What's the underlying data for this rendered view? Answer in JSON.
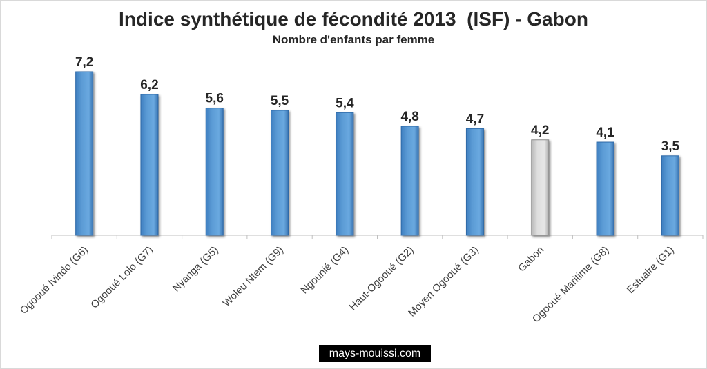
{
  "chart_data": {
    "type": "bar",
    "title": "Indice synthétique de fécondité 2013  (ISF) - Gabon",
    "subtitle": "Nombre d'enfants par femme",
    "categories": [
      "Ogooué Ivindo (G6)",
      "Ogooué Lolo (G7)",
      "Nyanga (G5)",
      "Woleu Ntem (G9)",
      "Ngounié (G4)",
      "Haut-Ogooué (G2)",
      "Moyen Ogooué (G3)",
      "Gabon",
      "Ogooué Maritime (G8)",
      "Estuaire (G1)"
    ],
    "values": [
      7.2,
      6.2,
      5.6,
      5.5,
      5.4,
      4.8,
      4.7,
      4.2,
      4.1,
      3.5
    ],
    "value_labels": [
      "7,2",
      "6,2",
      "5,6",
      "5,5",
      "5,4",
      "4,8",
      "4,7",
      "4,2",
      "4,1",
      "3,5"
    ],
    "highlight_category": "Gabon",
    "colors": {
      "bar": "#5b9bd5",
      "highlight": "#d9d9d9"
    },
    "ylim": [
      0,
      7.2
    ],
    "grid": false,
    "legend": "none"
  },
  "watermark": "mays-mouissi.com"
}
